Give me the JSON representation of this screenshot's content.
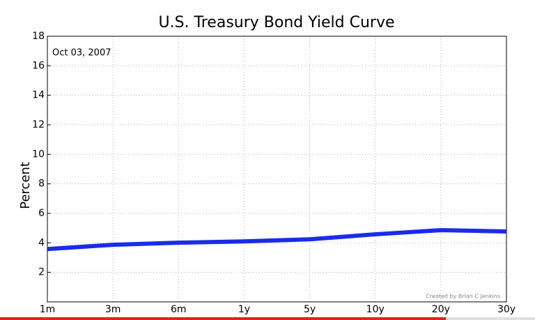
{
  "chart_data": {
    "type": "line",
    "title": "U.S. Treasury Bond Yield Curve",
    "y_label": "Percent",
    "annotations": [
      "Oct 03, 2007",
      "Created by Brian C Jenkins"
    ],
    "categories": [
      "1m",
      "3m",
      "6m",
      "1y",
      "5y",
      "10y",
      "20y",
      "30y"
    ],
    "series": [
      {
        "name": "Yield",
        "color": "#1a2ce8",
        "values": [
          3.58,
          3.87,
          4.01,
          4.1,
          4.24,
          4.58,
          4.86,
          4.77
        ]
      }
    ],
    "ylim": [
      0,
      18
    ],
    "yticks": [
      2,
      4,
      6,
      8,
      10,
      12,
      14,
      16,
      18
    ],
    "grid": true
  }
}
